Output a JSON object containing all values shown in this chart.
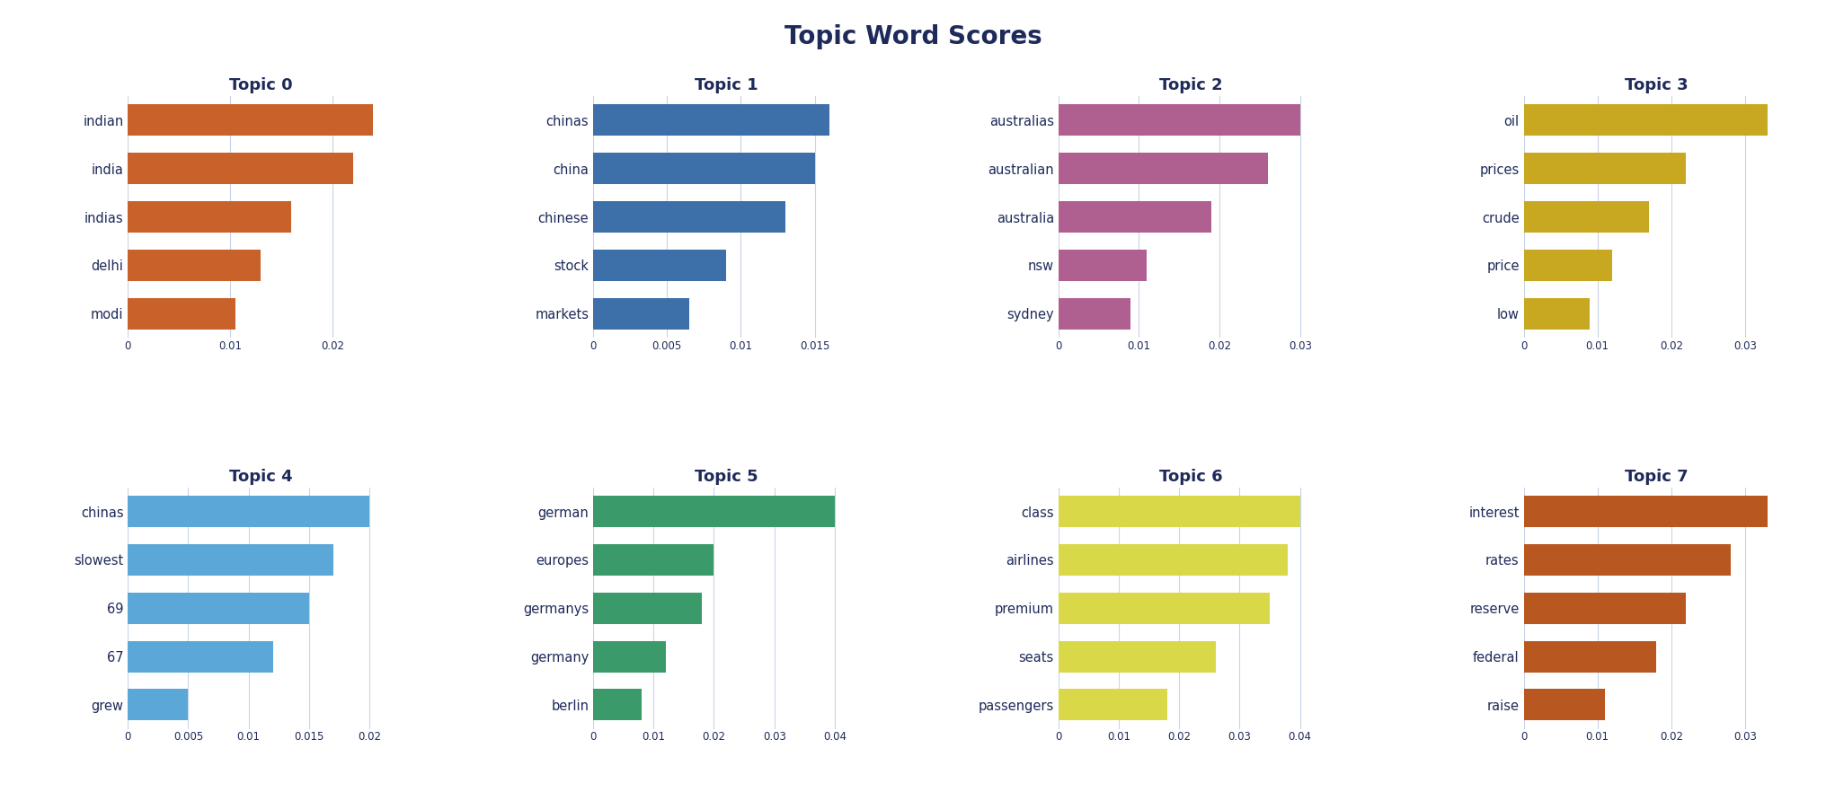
{
  "title": "Topic Word Scores",
  "title_fontsize": 20,
  "title_fontweight": "bold",
  "topics": [
    {
      "title": "Topic 0",
      "words": [
        "modi",
        "delhi",
        "indias",
        "india",
        "indian"
      ],
      "scores": [
        0.0105,
        0.013,
        0.016,
        0.022,
        0.024
      ],
      "color": "#c8622a",
      "xticks": [
        0,
        0.01,
        0.02
      ],
      "xlim": [
        0,
        0.026
      ]
    },
    {
      "title": "Topic 1",
      "words": [
        "markets",
        "stock",
        "chinese",
        "china",
        "chinas"
      ],
      "scores": [
        0.0065,
        0.009,
        0.013,
        0.015,
        0.016
      ],
      "color": "#3d6fa8",
      "xticks": [
        0,
        0.005,
        0.01,
        0.015
      ],
      "xlim": [
        0,
        0.018
      ]
    },
    {
      "title": "Topic 2",
      "words": [
        "sydney",
        "nsw",
        "australia",
        "australian",
        "australias"
      ],
      "scores": [
        0.009,
        0.011,
        0.019,
        0.026,
        0.03
      ],
      "color": "#b06090",
      "xticks": [
        0,
        0.01,
        0.02,
        0.03
      ],
      "xlim": [
        0,
        0.033
      ]
    },
    {
      "title": "Topic 3",
      "words": [
        "low",
        "price",
        "crude",
        "prices",
        "oil"
      ],
      "scores": [
        0.009,
        0.012,
        0.017,
        0.022,
        0.033
      ],
      "color": "#c8a820",
      "xticks": [
        0,
        0.01,
        0.02,
        0.03
      ],
      "xlim": [
        0,
        0.036
      ]
    },
    {
      "title": "Topic 4",
      "words": [
        "grew",
        "67",
        "69",
        "slowest",
        "chinas"
      ],
      "scores": [
        0.005,
        0.012,
        0.015,
        0.017,
        0.02
      ],
      "color": "#5ba8d8",
      "xticks": [
        0,
        0.005,
        0.01,
        0.015,
        0.02
      ],
      "xlim": [
        0,
        0.022
      ]
    },
    {
      "title": "Topic 5",
      "words": [
        "berlin",
        "germany",
        "germanys",
        "europes",
        "german"
      ],
      "scores": [
        0.008,
        0.012,
        0.018,
        0.02,
        0.04
      ],
      "color": "#3a9a6a",
      "xticks": [
        0,
        0.01,
        0.02,
        0.03,
        0.04
      ],
      "xlim": [
        0,
        0.044
      ]
    },
    {
      "title": "Topic 6",
      "words": [
        "passengers",
        "seats",
        "premium",
        "airlines",
        "class"
      ],
      "scores": [
        0.018,
        0.026,
        0.035,
        0.038,
        0.04
      ],
      "color": "#d8d848",
      "xticks": [
        0,
        0.01,
        0.02,
        0.03,
        0.04
      ],
      "xlim": [
        0,
        0.044
      ]
    },
    {
      "title": "Topic 7",
      "words": [
        "raise",
        "federal",
        "reserve",
        "rates",
        "interest"
      ],
      "scores": [
        0.011,
        0.018,
        0.022,
        0.028,
        0.033
      ],
      "color": "#b85820",
      "xticks": [
        0,
        0.01,
        0.02,
        0.03
      ],
      "xlim": [
        0,
        0.036
      ]
    }
  ],
  "label_color": "#1e2a5a",
  "bg_color": "#ffffff",
  "grid_color": "#c8d4e8"
}
